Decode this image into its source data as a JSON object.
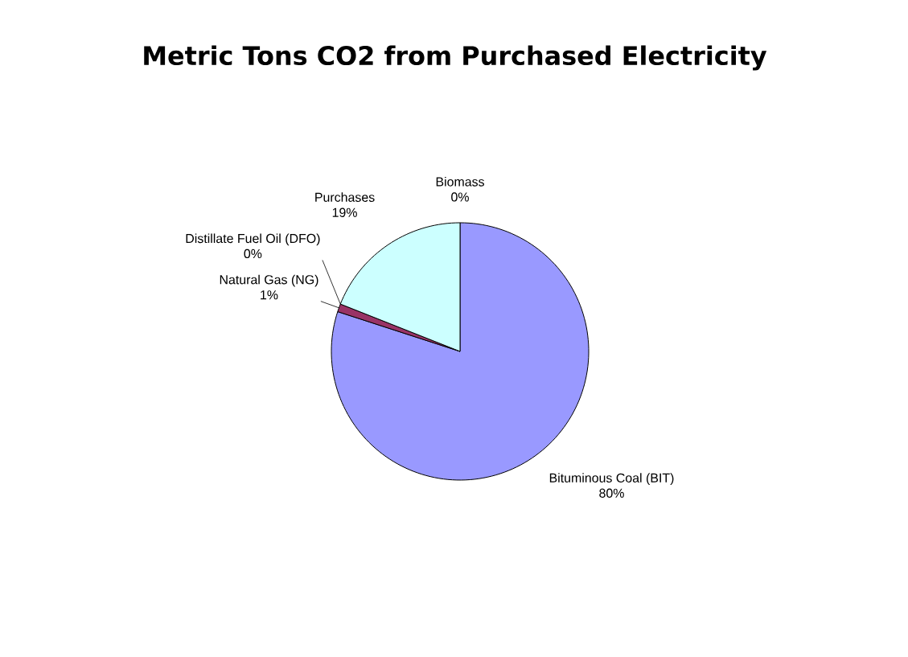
{
  "chart_data": {
    "type": "pie",
    "title": "Metric Tons CO2 from Purchased Electricity",
    "categories": [
      "Bituminous Coal (BIT)",
      "Natural Gas (NG)",
      "Distillate Fuel Oil (DFO)",
      "Purchases",
      "Biomass"
    ],
    "values": [
      80,
      1,
      0,
      19,
      0
    ],
    "value_labels": [
      "80%",
      "1%",
      "0%",
      "19%",
      "0%"
    ],
    "colors": [
      "#9999ff",
      "#993366",
      "#ffffcc",
      "#ccffff",
      "#660066"
    ]
  }
}
